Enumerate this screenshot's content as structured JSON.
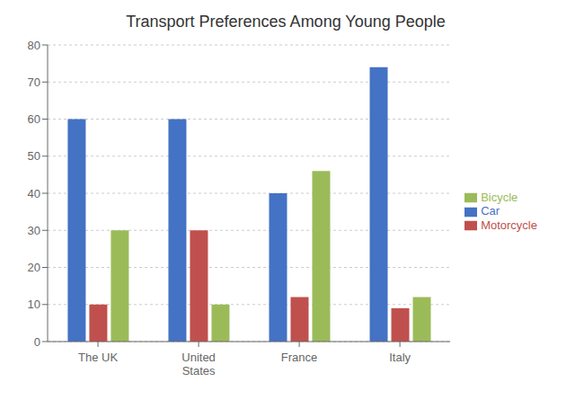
{
  "chart_data": {
    "type": "bar",
    "title": "Transport Preferences Among Young People",
    "categories": [
      "The UK",
      "United\nStates",
      "France",
      "Italy"
    ],
    "series": [
      {
        "name": "Car",
        "color": "#4472C4",
        "values": [
          60,
          60,
          40,
          74
        ]
      },
      {
        "name": "Motorcycle",
        "color": "#C0504D",
        "values": [
          10,
          30,
          12,
          9
        ]
      },
      {
        "name": "Bicycle",
        "color": "#9BBB59",
        "values": [
          30,
          10,
          46,
          12
        ]
      }
    ],
    "ylim": [
      0,
      80
    ],
    "yticks": [
      0,
      10,
      20,
      30,
      40,
      50,
      60,
      70,
      80
    ],
    "grid": true,
    "legend": "right"
  }
}
